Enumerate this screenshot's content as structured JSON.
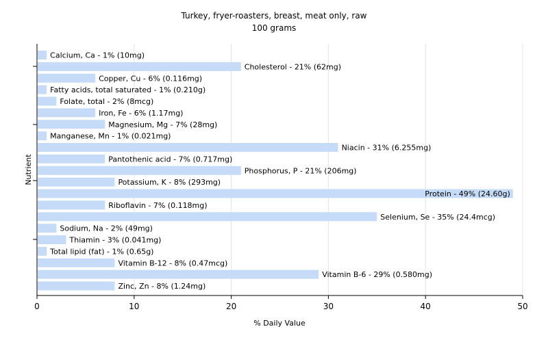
{
  "chart_data": {
    "type": "bar",
    "orientation": "horizontal",
    "title": "Turkey, fryer-roasters, breast, meat only, raw",
    "subtitle": "100 grams",
    "xlabel": "% Daily Value",
    "ylabel": "Nutrient",
    "xlim": [
      0,
      50
    ],
    "xticks": [
      0,
      10,
      20,
      30,
      40,
      50
    ],
    "grid": true,
    "bar_color": "#c6dbf7",
    "categories": [
      "Calcium, Ca",
      "Cholesterol",
      "Copper, Cu",
      "Fatty acids, total saturated",
      "Folate, total",
      "Iron, Fe",
      "Magnesium, Mg",
      "Manganese, Mn",
      "Niacin",
      "Pantothenic acid",
      "Phosphorus, P",
      "Potassium, K",
      "Protein",
      "Riboflavin",
      "Selenium, Se",
      "Sodium, Na",
      "Thiamin",
      "Total lipid (fat)",
      "Vitamin B-12",
      "Vitamin B-6",
      "Zinc, Zn"
    ],
    "values": [
      1,
      21,
      6,
      1,
      2,
      6,
      7,
      1,
      31,
      7,
      21,
      8,
      49,
      7,
      35,
      2,
      3,
      1,
      8,
      29,
      8
    ],
    "labels": [
      "Calcium, Ca - 1% (10mg)",
      "Cholesterol - 21% (62mg)",
      "Copper, Cu - 6% (0.116mg)",
      "Fatty acids, total saturated - 1% (0.210g)",
      "Folate, total - 2% (8mcg)",
      "Iron, Fe - 6% (1.17mg)",
      "Magnesium, Mg - 7% (28mg)",
      "Manganese, Mn - 1% (0.021mg)",
      "Niacin - 31% (6.255mg)",
      "Pantothenic acid - 7% (0.717mg)",
      "Phosphorus, P - 21% (206mg)",
      "Potassium, K - 8% (293mg)",
      "Protein - 49% (24.60g)",
      "Riboflavin - 7% (0.118mg)",
      "Selenium, Se - 35% (24.4mcg)",
      "Sodium, Na - 2% (49mg)",
      "Thiamin - 3% (0.041mg)",
      "Total lipid (fat) - 1% (0.65g)",
      "Vitamin B-12 - 8% (0.47mcg)",
      "Vitamin B-6 - 29% (0.580mg)",
      "Zinc, Zn - 8% (1.24mg)"
    ]
  }
}
